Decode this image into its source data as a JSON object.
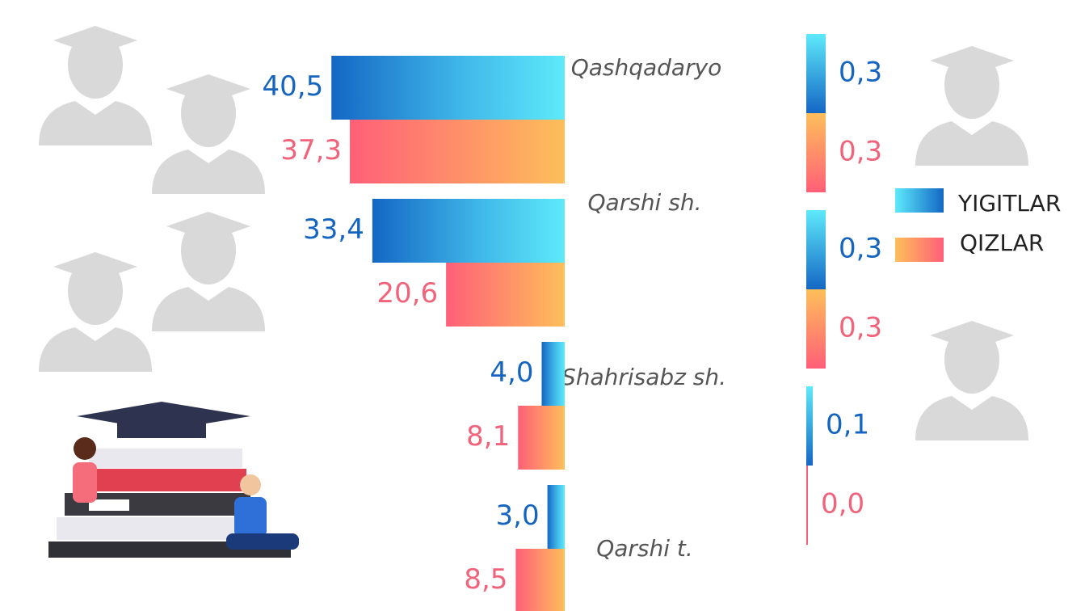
{
  "chart_data": [
    {
      "type": "hbar-left",
      "categories": [
        "Qashqadaryo",
        "Qarshi sh.",
        "Shahrisabz sh.",
        "Qarshi t."
      ],
      "series": [
        {
          "name": "YIGITLAR",
          "color": "#1565c0",
          "values": [
            40.5,
            33.4,
            4.0,
            3.0
          ],
          "value_labels": [
            "40,5",
            "33,4",
            "4,0",
            "3,0"
          ]
        },
        {
          "name": "QIZLAR",
          "color": "#f0637a",
          "values": [
            37.3,
            20.6,
            8.1,
            8.5
          ],
          "value_labels": [
            "37,3",
            "20,6",
            "8,1",
            "8,5"
          ]
        }
      ]
    },
    {
      "type": "hbar-right",
      "series": [
        {
          "color": "#1565c0",
          "values": [
            0.3,
            0.3,
            0.1
          ],
          "value_labels": [
            "0,3",
            "0,3",
            "0,1"
          ]
        },
        {
          "color": "#f0637a",
          "values": [
            0.3,
            0.3,
            0.0
          ],
          "value_labels": [
            "0,3",
            "0,3",
            "0,0"
          ]
        }
      ]
    }
  ]
}
